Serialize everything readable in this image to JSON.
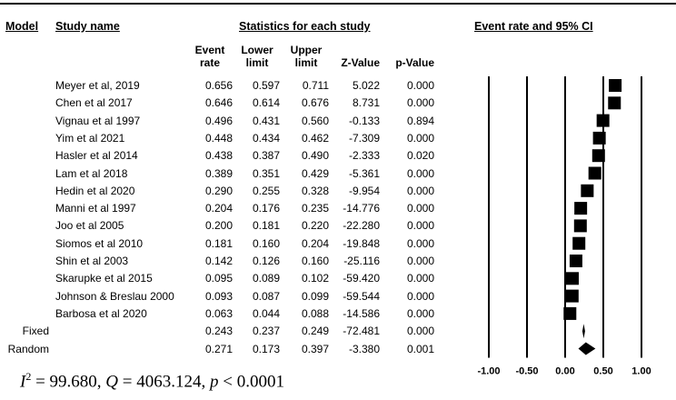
{
  "headers": {
    "model": "Model",
    "study": "Study name",
    "stats": "Statistics for each study",
    "ci": "Event rate and 95% CI",
    "event_rate": [
      "Event",
      "rate"
    ],
    "lower": [
      "Lower",
      "limit"
    ],
    "upper": [
      "Upper",
      "limit"
    ],
    "z": "Z-Value",
    "p": "p-Value"
  },
  "chart_data": {
    "type": "forest",
    "x_axis": {
      "min": -1.0,
      "max": 1.0,
      "ticks": [
        -1.0,
        -0.5,
        0.0,
        0.5,
        1.0
      ],
      "tick_labels": [
        "-1.00",
        "-0.50",
        "0.00",
        "0.50",
        "1.00"
      ]
    },
    "studies": [
      {
        "name": "Meyer et al, 2019",
        "rate": 0.656,
        "lower": 0.597,
        "upper": 0.711,
        "z": "5.022",
        "p": "0.000"
      },
      {
        "name": "Chen et al 2017",
        "rate": 0.646,
        "lower": 0.614,
        "upper": 0.676,
        "z": "8.731",
        "p": "0.000"
      },
      {
        "name": "Vignau et al 1997",
        "rate": 0.496,
        "lower": 0.431,
        "upper": 0.56,
        "z": "-0.133",
        "p": "0.894"
      },
      {
        "name": "Yim et al 2021",
        "rate": 0.448,
        "lower": 0.434,
        "upper": 0.462,
        "z": "-7.309",
        "p": "0.000"
      },
      {
        "name": "Hasler et al 2014",
        "rate": 0.438,
        "lower": 0.387,
        "upper": 0.49,
        "z": "-2.333",
        "p": "0.020"
      },
      {
        "name": "Lam et al 2018",
        "rate": 0.389,
        "lower": 0.351,
        "upper": 0.429,
        "z": "-5.361",
        "p": "0.000"
      },
      {
        "name": "Hedin et al 2020",
        "rate": 0.29,
        "lower": 0.255,
        "upper": 0.328,
        "z": "-9.954",
        "p": "0.000"
      },
      {
        "name": "Manni et al 1997",
        "rate": 0.204,
        "lower": 0.176,
        "upper": 0.235,
        "z": "-14.776",
        "p": "0.000"
      },
      {
        "name": "Joo et al 2005",
        "rate": 0.2,
        "lower": 0.181,
        "upper": 0.22,
        "z": "-22.280",
        "p": "0.000"
      },
      {
        "name": "Siomos et al 2010",
        "rate": 0.181,
        "lower": 0.16,
        "upper": 0.204,
        "z": "-19.848",
        "p": "0.000"
      },
      {
        "name": "Shin et al 2003",
        "rate": 0.142,
        "lower": 0.126,
        "upper": 0.16,
        "z": "-25.116",
        "p": "0.000"
      },
      {
        "name": "Skarupke et al 2015",
        "rate": 0.095,
        "lower": 0.089,
        "upper": 0.102,
        "z": "-59.420",
        "p": "0.000"
      },
      {
        "name": "Johnson & Breslau 2000",
        "rate": 0.093,
        "lower": 0.087,
        "upper": 0.099,
        "z": "-59.544",
        "p": "0.000"
      },
      {
        "name": "Barbosa et al 2020",
        "rate": 0.063,
        "lower": 0.044,
        "upper": 0.088,
        "z": "-14.586",
        "p": "0.000"
      }
    ],
    "pooled": [
      {
        "model": "Fixed",
        "rate": 0.243,
        "lower": 0.237,
        "upper": 0.249,
        "z": "-72.481",
        "p": "0.000"
      },
      {
        "model": "Random",
        "rate": 0.271,
        "lower": 0.173,
        "upper": 0.397,
        "z": "-3.380",
        "p": "0.001"
      }
    ]
  },
  "heterogeneity": {
    "i2_label": "I",
    "i2_sup": "2",
    "i2_value": " = 99.680, ",
    "q_label": "Q",
    "q_value": " = 4063.124, ",
    "p_label": "p",
    "p_value": " < 0.0001"
  }
}
